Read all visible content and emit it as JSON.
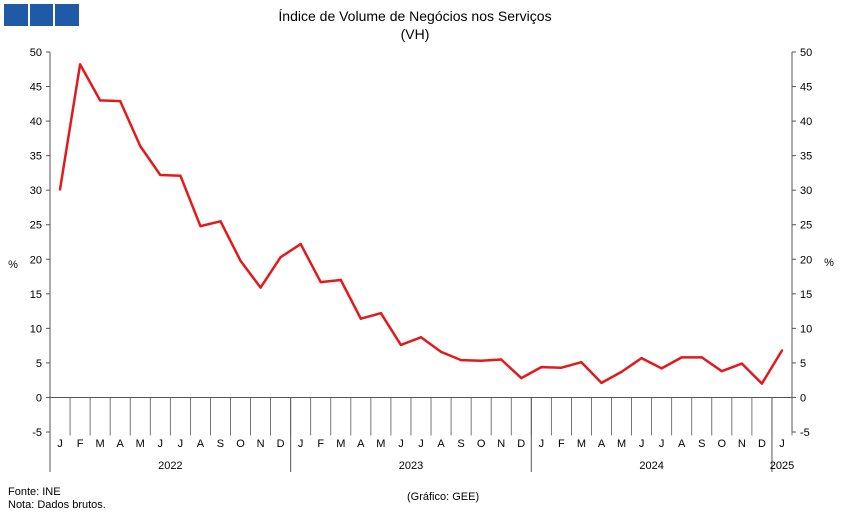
{
  "chart_data": {
    "type": "line",
    "title": "Índice de Volume de Negócios nos Serviços",
    "subtitle": "(VH)",
    "ylabel_left": "%",
    "ylabel_right": "%",
    "ylim": [
      -5,
      50
    ],
    "yticks": [
      -5,
      0,
      5,
      10,
      15,
      20,
      25,
      30,
      35,
      40,
      45,
      50
    ],
    "month_labels": [
      "J",
      "F",
      "M",
      "A",
      "M",
      "J",
      "J",
      "A",
      "S",
      "O",
      "N",
      "D",
      "J",
      "F",
      "M",
      "A",
      "M",
      "J",
      "J",
      "A",
      "S",
      "O",
      "N",
      "D",
      "J",
      "F",
      "M",
      "A",
      "M",
      "J",
      "J",
      "A",
      "S",
      "O",
      "N",
      "D",
      "J"
    ],
    "years": [
      {
        "label": "2022",
        "start": 0,
        "end": 12
      },
      {
        "label": "2023",
        "start": 12,
        "end": 24
      },
      {
        "label": "2024",
        "start": 24,
        "end": 36
      },
      {
        "label": "2025",
        "start": 36,
        "end": 37
      }
    ],
    "series": [
      {
        "color": "#e31a1c",
        "values": [
          30.1,
          48.2,
          43.0,
          42.9,
          36.4,
          32.2,
          32.1,
          24.8,
          25.5,
          19.8,
          15.9,
          20.3,
          22.2,
          16.7,
          17.0,
          11.4,
          12.2,
          7.6,
          8.7,
          6.6,
          5.4,
          5.3,
          5.5,
          2.8,
          4.4,
          4.3,
          5.1,
          2.1,
          3.7,
          5.7,
          4.2,
          5.8,
          5.8,
          3.8,
          4.9,
          2.0,
          6.8
        ]
      }
    ],
    "grid": false
  },
  "footer": {
    "source": "Fonte: INE",
    "note": "Nota: Dados brutos.",
    "credit": "(Gráfico: GEE)"
  }
}
